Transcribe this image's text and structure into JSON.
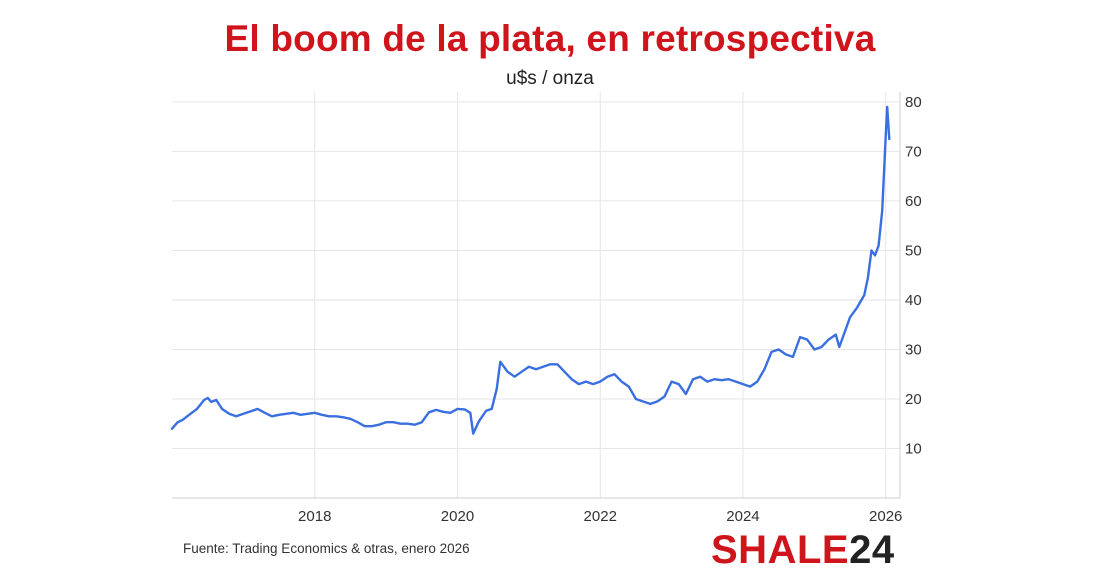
{
  "chart_data": {
    "type": "line",
    "title": "El boom de la plata, en retrospectiva",
    "subtitle": "u$s / onza",
    "xlabel": "",
    "ylabel": "",
    "xlim": [
      2016.0,
      2026.2
    ],
    "ylim": [
      0,
      82
    ],
    "x_ticks": [
      2018,
      2020,
      2022,
      2024,
      2026
    ],
    "y_ticks": [
      10,
      20,
      30,
      40,
      50,
      60,
      70,
      80
    ],
    "grid": true,
    "y_axis_position": "right",
    "legend": "none",
    "line_color": "#3a6fe0",
    "series": [
      {
        "x": [
          2016.0,
          2016.08,
          2016.15,
          2016.25,
          2016.35,
          2016.45,
          2016.5,
          2016.55,
          2016.62,
          2016.7,
          2016.8,
          2016.9,
          2017.0,
          2017.1,
          2017.2,
          2017.3,
          2017.4,
          2017.5,
          2017.6,
          2017.7,
          2017.8,
          2017.9,
          2018.0,
          2018.1,
          2018.2,
          2018.3,
          2018.4,
          2018.5,
          2018.6,
          2018.7,
          2018.8,
          2018.9,
          2019.0,
          2019.1,
          2019.2,
          2019.3,
          2019.4,
          2019.5,
          2019.6,
          2019.7,
          2019.8,
          2019.9,
          2020.0,
          2020.1,
          2020.18,
          2020.22,
          2020.3,
          2020.4,
          2020.48,
          2020.55,
          2020.6,
          2020.7,
          2020.8,
          2020.9,
          2021.0,
          2021.1,
          2021.2,
          2021.3,
          2021.4,
          2021.5,
          2021.6,
          2021.7,
          2021.8,
          2021.9,
          2022.0,
          2022.1,
          2022.2,
          2022.3,
          2022.4,
          2022.5,
          2022.6,
          2022.7,
          2022.8,
          2022.9,
          2023.0,
          2023.1,
          2023.2,
          2023.3,
          2023.4,
          2023.5,
          2023.6,
          2023.7,
          2023.8,
          2023.9,
          2024.0,
          2024.1,
          2024.2,
          2024.3,
          2024.4,
          2024.5,
          2024.6,
          2024.7,
          2024.8,
          2024.9,
          2025.0,
          2025.1,
          2025.2,
          2025.3,
          2025.35,
          2025.4,
          2025.5,
          2025.6,
          2025.7,
          2025.75,
          2025.8,
          2025.85,
          2025.9,
          2025.95,
          2026.0,
          2026.02,
          2026.05
        ],
        "y": [
          14.0,
          15.3,
          15.8,
          16.9,
          18.0,
          19.8,
          20.2,
          19.4,
          19.8,
          18.0,
          17.0,
          16.5,
          17.0,
          17.5,
          18.0,
          17.2,
          16.5,
          16.8,
          17.0,
          17.2,
          16.8,
          17.0,
          17.2,
          16.8,
          16.5,
          16.5,
          16.3,
          16.0,
          15.3,
          14.5,
          14.5,
          14.8,
          15.3,
          15.3,
          15.0,
          15.0,
          14.8,
          15.3,
          17.3,
          17.8,
          17.4,
          17.2,
          18.0,
          17.9,
          17.2,
          13.0,
          15.5,
          17.6,
          18.0,
          22.0,
          27.5,
          25.5,
          24.5,
          25.5,
          26.5,
          26.0,
          26.5,
          27.0,
          27.0,
          25.5,
          24.0,
          23.0,
          23.5,
          23.0,
          23.5,
          24.5,
          25.0,
          23.5,
          22.5,
          20.0,
          19.5,
          19.0,
          19.5,
          20.5,
          23.5,
          23.0,
          21.0,
          24.0,
          24.5,
          23.5,
          24.0,
          23.8,
          24.0,
          23.5,
          23.0,
          22.5,
          23.5,
          26.0,
          29.5,
          30.0,
          29.0,
          28.5,
          32.5,
          32.0,
          30.0,
          30.5,
          32.0,
          33.0,
          30.5,
          32.5,
          36.5,
          38.5,
          41.0,
          44.5,
          50.0,
          49.0,
          51.0,
          58.0,
          73.0,
          79.0,
          72.5
        ]
      }
    ]
  },
  "footer": {
    "source": "Fuente: Trading Economics & otras, enero 2026",
    "logo_part1": "SHALE",
    "logo_part2": "24"
  }
}
